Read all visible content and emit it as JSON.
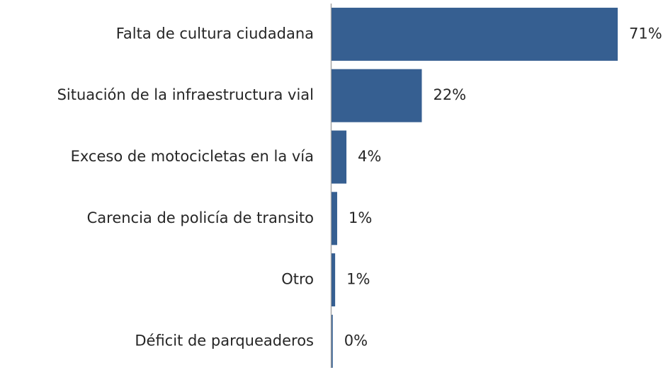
{
  "chart_data": {
    "type": "bar",
    "orientation": "horizontal",
    "categories": [
      "Falta de cultura ciudadana",
      "Situación de la infraestructura vial",
      "Exceso de motocicletas en la vía",
      "Carencia de policía de transito",
      "Otro",
      "Déficit de parqueaderos"
    ],
    "values": [
      71,
      22.4,
      3.7,
      1.4,
      0.9,
      0.3
    ],
    "value_labels": [
      "71%",
      "22%",
      "4%",
      "1%",
      "1%",
      "0%"
    ],
    "color": "#365f91"
  }
}
